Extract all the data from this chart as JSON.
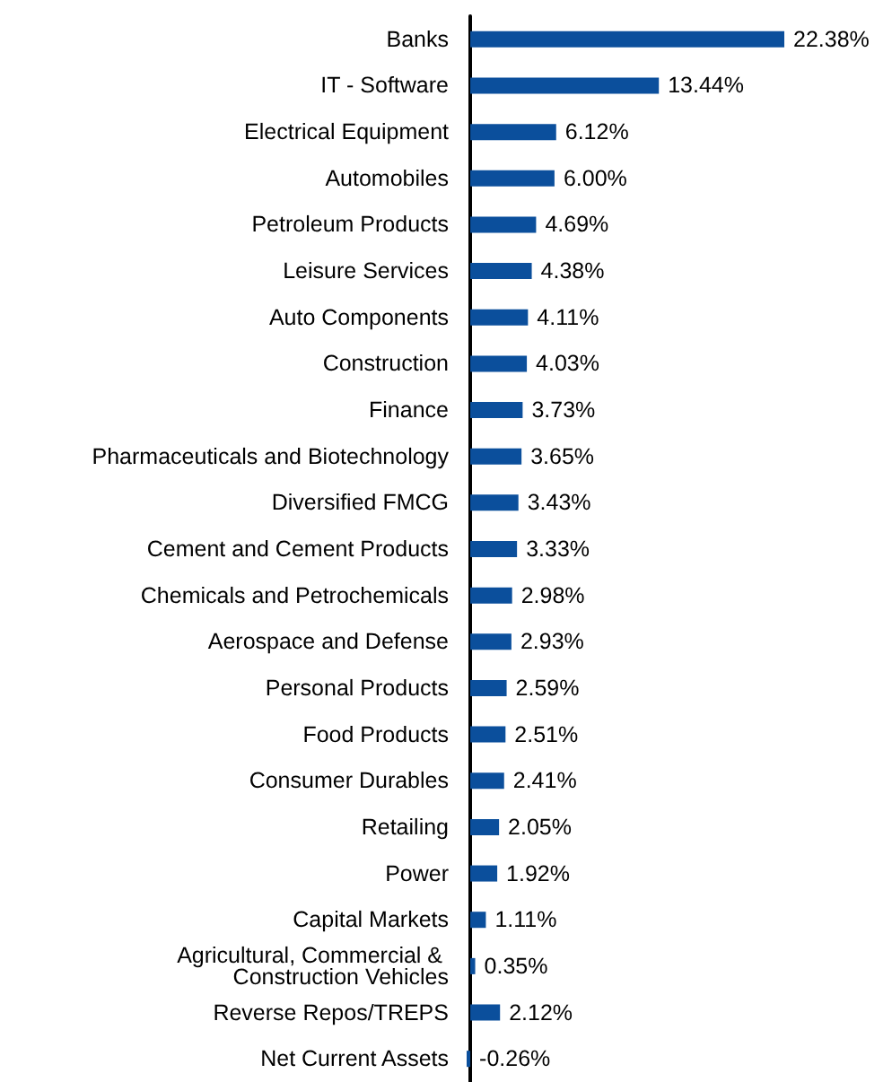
{
  "chart_data": {
    "type": "bar",
    "orientation": "horizontal",
    "color": "#0b4f9c",
    "categories": [
      "Banks",
      "IT - Software",
      "Electrical Equipment",
      "Automobiles",
      "Petroleum Products",
      "Leisure Services",
      "Auto Components",
      "Construction",
      "Finance",
      "Pharmaceuticals and Biotechnology",
      "Diversified FMCG",
      "Cement and Cement Products",
      "Chemicals and Petrochemicals",
      "Aerospace and Defense",
      "Personal Products",
      "Food Products",
      "Consumer Durables",
      "Retailing",
      "Power",
      "Capital Markets",
      "Agricultural, Commercial & Construction Vehicles",
      "Reverse Repos/TREPS",
      "Net Current Assets"
    ],
    "values": [
      22.38,
      13.44,
      6.12,
      6.0,
      4.69,
      4.38,
      4.11,
      4.03,
      3.73,
      3.65,
      3.43,
      3.33,
      2.98,
      2.93,
      2.59,
      2.51,
      2.41,
      2.05,
      1.92,
      1.11,
      0.35,
      2.12,
      -0.26
    ],
    "value_labels": [
      "22.38%",
      "13.44%",
      "6.12%",
      "6.00%",
      "4.69%",
      "4.38%",
      "4.11%",
      "4.03%",
      "3.73%",
      "3.65%",
      "3.43%",
      "3.33%",
      "2.98%",
      "2.93%",
      "2.59%",
      "2.51%",
      "2.41%",
      "2.05%",
      "1.92%",
      "1.11%",
      "0.35%",
      "2.12%",
      "-0.26%"
    ]
  }
}
